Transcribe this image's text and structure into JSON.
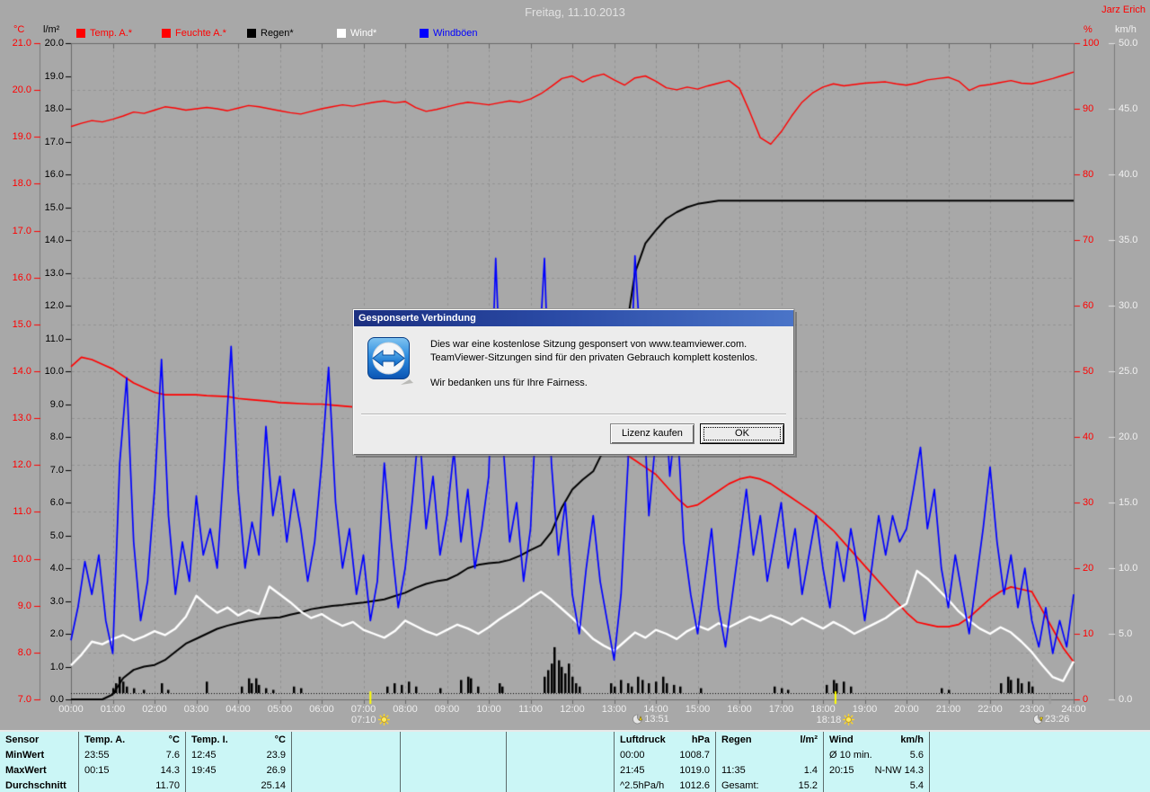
{
  "window": {
    "title_center": "Freitag, 11.10.2013",
    "station_name": "Jarz Erich"
  },
  "header": {
    "left_axis_units": [
      "°C",
      "l/m²"
    ],
    "right_axis_units": [
      "%",
      "km/h"
    ],
    "legend": [
      {
        "label": "Temp. A.*",
        "color": "#ff0000",
        "text_color": "#ff0000"
      },
      {
        "label": "Feuchte A.*",
        "color": "#ff0000",
        "text_color": "#ff0000"
      },
      {
        "label": "Regen*",
        "color": "#000000",
        "text_color": "#000000"
      },
      {
        "label": "Wind*",
        "color": "#ffffff",
        "text_color": "#ffffff"
      },
      {
        "label": "Windböen",
        "color": "#0000ff",
        "text_color": "#0000ff"
      }
    ]
  },
  "chart_data": {
    "type": "line",
    "title": "Freitag, 11.10.2013",
    "x_axis": {
      "start_hour": 0,
      "end_hour": 24,
      "tick_every_hours": 1,
      "label_format": "HH:00"
    },
    "grid": {
      "horizontal": "dashed at every °C tick",
      "vertical": "dashed at every hour"
    },
    "axes": [
      {
        "id": "temp_c",
        "side": "left",
        "pos": 0,
        "unit": "°C",
        "color": "#ff0000",
        "min": 7,
        "max": 21,
        "step": 1,
        "decimals": 1
      },
      {
        "id": "rain_lm2",
        "side": "left",
        "pos": 1,
        "unit": "l/m²",
        "color": "#000000",
        "min": 0,
        "max": 20,
        "step": 1,
        "decimals": 1
      },
      {
        "id": "hum_pct",
        "side": "right",
        "pos": 0,
        "unit": "%",
        "color": "#ff0000",
        "min": 0,
        "max": 100,
        "step": 10,
        "decimals": 0
      },
      {
        "id": "wind_kmh",
        "side": "right",
        "pos": 1,
        "unit": "km/h",
        "color": "#f0f0f0",
        "min": 0,
        "max": 50,
        "step": 5,
        "decimals": 1
      }
    ],
    "series": [
      {
        "name": "Temp. A.*",
        "axis": "temp_c",
        "color": "#ff0000",
        "start": 0,
        "step": 0.25,
        "values": [
          14.1,
          14.3,
          14.25,
          14.15,
          14.05,
          13.9,
          13.75,
          13.65,
          13.55,
          13.5,
          13.5,
          13.5,
          13.5,
          13.48,
          13.47,
          13.46,
          13.42,
          13.4,
          13.38,
          13.36,
          13.33,
          13.32,
          13.31,
          13.3,
          13.3,
          13.28,
          13.26,
          13.24,
          13.22,
          13.21,
          13.2,
          13.18,
          13.15,
          13.12,
          13.1,
          13.05,
          13.0,
          12.98,
          12.95,
          12.92,
          12.9,
          12.88,
          12.85,
          12.82,
          12.8,
          12.75,
          12.7,
          12.65,
          12.6,
          12.55,
          12.5,
          12.42,
          12.35,
          12.25,
          12.1,
          11.95,
          11.8,
          11.55,
          11.3,
          11.1,
          11.15,
          11.3,
          11.45,
          11.6,
          11.7,
          11.75,
          11.7,
          11.6,
          11.45,
          11.3,
          11.15,
          11.0,
          10.8,
          10.6,
          10.35,
          10.1,
          9.85,
          9.6,
          9.35,
          9.1,
          8.85,
          8.65,
          8.6,
          8.55,
          8.55,
          8.6,
          8.75,
          8.95,
          9.15,
          9.3,
          9.4,
          9.35,
          9.3,
          8.9,
          8.5,
          8.1,
          7.8
        ]
      },
      {
        "name": "Feuchte A.*",
        "axis": "hum_pct",
        "color": "#ff0000",
        "start": 0,
        "step": 0.25,
        "values": [
          87.3,
          87.8,
          88.2,
          88.0,
          88.4,
          88.9,
          89.5,
          89.3,
          89.8,
          90.3,
          90.1,
          89.8,
          90.0,
          90.2,
          90.0,
          89.7,
          90.1,
          90.5,
          90.3,
          90.0,
          89.7,
          89.4,
          89.2,
          89.6,
          90.0,
          90.3,
          90.6,
          90.4,
          90.7,
          91.0,
          91.2,
          90.9,
          91.1,
          90.2,
          89.6,
          89.9,
          90.3,
          90.7,
          91.0,
          90.8,
          90.6,
          90.9,
          91.2,
          91.0,
          91.5,
          92.3,
          93.4,
          94.6,
          95.0,
          94.1,
          94.9,
          95.3,
          94.4,
          93.6,
          94.7,
          95.0,
          94.2,
          93.2,
          92.9,
          93.3,
          93.0,
          93.5,
          93.9,
          94.3,
          93.1,
          89.5,
          85.6,
          84.6,
          86.5,
          88.9,
          91.0,
          92.4,
          93.3,
          93.8,
          93.5,
          93.7,
          93.9,
          94.0,
          94.1,
          93.8,
          93.6,
          93.9,
          94.4,
          94.6,
          94.8,
          94.2,
          92.8,
          93.5,
          93.7,
          94.0,
          94.3,
          93.9,
          93.8,
          94.2,
          94.6,
          95.1,
          95.6
        ]
      },
      {
        "name": "Regen (Summe)",
        "axis": "rain_lm2",
        "color": "#000000",
        "start": 0,
        "step": 0.25,
        "values": [
          0,
          0,
          0,
          0,
          0.15,
          0.65,
          0.9,
          1.0,
          1.05,
          1.2,
          1.45,
          1.7,
          1.85,
          2.0,
          2.15,
          2.25,
          2.33,
          2.4,
          2.45,
          2.48,
          2.5,
          2.58,
          2.65,
          2.75,
          2.8,
          2.85,
          2.88,
          2.92,
          2.95,
          3.0,
          3.05,
          3.15,
          3.25,
          3.4,
          3.52,
          3.6,
          3.65,
          3.8,
          4.0,
          4.1,
          4.15,
          4.18,
          4.25,
          4.38,
          4.55,
          4.7,
          5.1,
          5.85,
          6.4,
          6.7,
          6.95,
          7.6,
          9.0,
          10.9,
          13.0,
          13.9,
          14.3,
          14.65,
          14.85,
          15.0,
          15.1,
          15.15,
          15.2,
          15.2,
          15.2,
          15.2,
          15.2,
          15.2,
          15.2,
          15.2,
          15.2,
          15.2,
          15.2,
          15.2,
          15.2,
          15.2,
          15.2,
          15.2,
          15.2,
          15.2,
          15.2,
          15.2,
          15.2,
          15.2,
          15.2,
          15.2,
          15.2,
          15.2,
          15.2,
          15.2,
          15.2,
          15.2,
          15.2,
          15.2,
          15.2,
          15.2,
          15.2
        ]
      },
      {
        "name": "Wind*",
        "axis": "wind_kmh",
        "color": "#ffffff",
        "start": 0,
        "step": 0.25,
        "values": [
          2.6,
          3.4,
          4.4,
          4.2,
          4.6,
          4.9,
          4.5,
          4.8,
          5.2,
          4.9,
          5.4,
          6.3,
          7.9,
          7.2,
          6.6,
          7.0,
          6.4,
          6.8,
          6.5,
          8.6,
          8.0,
          7.4,
          6.7,
          6.2,
          6.5,
          6.0,
          5.6,
          5.9,
          5.3,
          5.0,
          4.7,
          5.2,
          6.0,
          5.6,
          5.2,
          4.9,
          5.3,
          5.7,
          5.4,
          5.0,
          5.5,
          6.1,
          6.6,
          7.1,
          7.7,
          8.2,
          7.6,
          6.9,
          6.2,
          5.4,
          4.6,
          4.1,
          3.7,
          4.4,
          5.1,
          4.7,
          5.3,
          5.0,
          4.6,
          5.2,
          5.6,
          5.3,
          5.8,
          5.5,
          5.9,
          6.3,
          6.0,
          6.4,
          6.1,
          5.7,
          6.2,
          5.8,
          5.4,
          5.9,
          5.5,
          5.0,
          5.4,
          5.8,
          6.2,
          6.8,
          7.3,
          9.8,
          9.2,
          8.4,
          7.6,
          6.7,
          6.0,
          5.4,
          5.0,
          5.5,
          5.1,
          4.4,
          3.6,
          2.6,
          1.7,
          1.4,
          2.9
        ]
      },
      {
        "name": "Windböen",
        "axis": "wind_kmh",
        "color": "#0000ff",
        "start": 0,
        "step": 0.166667,
        "values": [
          4.5,
          7,
          10.5,
          8,
          11,
          6,
          3.5,
          18,
          24.5,
          12,
          6,
          9,
          16,
          25.9,
          14,
          8,
          12,
          9,
          15.5,
          11,
          13,
          10,
          18,
          26.9,
          16,
          10,
          13.5,
          11,
          20.8,
          14,
          17,
          12,
          16,
          13,
          9,
          12,
          18,
          25.3,
          15,
          10,
          13,
          8,
          11,
          6,
          9,
          18,
          12,
          7,
          10,
          15,
          21,
          13,
          17,
          11,
          14,
          19,
          12,
          16,
          10,
          13,
          17,
          33.6,
          20,
          12,
          15,
          9,
          13,
          24,
          33.6,
          18,
          11,
          15,
          8,
          5,
          10,
          14,
          9,
          6,
          3,
          8,
          18,
          33.8,
          25,
          14,
          20,
          26,
          17,
          22,
          12,
          8,
          5,
          9,
          13,
          7,
          4,
          8,
          12,
          16,
          11,
          14,
          9,
          12,
          15,
          10,
          13,
          8,
          11,
          14,
          10,
          7,
          12,
          9,
          13,
          10,
          6,
          10,
          14,
          11,
          14,
          12,
          13,
          16,
          19.2,
          13,
          16,
          10,
          7,
          11,
          8,
          5,
          9,
          13,
          17.7,
          12,
          8,
          11,
          7,
          10,
          6,
          4,
          7,
          3.5,
          6,
          4,
          8
        ]
      }
    ],
    "rain_bars": {
      "name": "Regen*",
      "axis": "rain_lm2",
      "color": "#000000",
      "bars": [
        [
          1.0,
          0.15
        ],
        [
          1.08,
          0.3
        ],
        [
          1.17,
          0.5
        ],
        [
          1.25,
          0.35
        ],
        [
          1.33,
          0.2
        ],
        [
          1.5,
          0.15
        ],
        [
          1.75,
          0.1
        ],
        [
          2.17,
          0.3
        ],
        [
          2.33,
          0.1
        ],
        [
          3.25,
          0.35
        ],
        [
          4.08,
          0.2
        ],
        [
          4.25,
          0.45
        ],
        [
          4.33,
          0.3
        ],
        [
          4.42,
          0.45
        ],
        [
          4.5,
          0.25
        ],
        [
          4.67,
          0.15
        ],
        [
          4.83,
          0.1
        ],
        [
          5.33,
          0.2
        ],
        [
          5.5,
          0.15
        ],
        [
          7.58,
          0.2
        ],
        [
          7.75,
          0.3
        ],
        [
          7.92,
          0.25
        ],
        [
          8.08,
          0.35
        ],
        [
          8.25,
          0.2
        ],
        [
          8.83,
          0.15
        ],
        [
          9.33,
          0.4
        ],
        [
          9.5,
          0.5
        ],
        [
          9.58,
          0.45
        ],
        [
          9.75,
          0.2
        ],
        [
          10.25,
          0.3
        ],
        [
          10.33,
          0.2
        ],
        [
          11.33,
          0.5
        ],
        [
          11.42,
          0.7
        ],
        [
          11.5,
          0.9
        ],
        [
          11.58,
          1.4
        ],
        [
          11.67,
          1.0
        ],
        [
          11.75,
          0.8
        ],
        [
          11.83,
          0.6
        ],
        [
          11.92,
          0.9
        ],
        [
          12.0,
          0.5
        ],
        [
          12.08,
          0.3
        ],
        [
          12.17,
          0.2
        ],
        [
          12.92,
          0.3
        ],
        [
          13.0,
          0.2
        ],
        [
          13.17,
          0.4
        ],
        [
          13.33,
          0.3
        ],
        [
          13.42,
          0.2
        ],
        [
          13.58,
          0.5
        ],
        [
          13.67,
          0.4
        ],
        [
          13.83,
          0.3
        ],
        [
          14.0,
          0.35
        ],
        [
          14.17,
          0.5
        ],
        [
          14.25,
          0.3
        ],
        [
          14.42,
          0.25
        ],
        [
          14.58,
          0.2
        ],
        [
          15.08,
          0.15
        ],
        [
          16.83,
          0.2
        ],
        [
          17.0,
          0.15
        ],
        [
          17.17,
          0.1
        ],
        [
          18.08,
          0.25
        ],
        [
          18.25,
          0.4
        ],
        [
          18.33,
          0.3
        ],
        [
          18.5,
          0.35
        ],
        [
          18.67,
          0.2
        ],
        [
          20.83,
          0.15
        ],
        [
          21.0,
          0.1
        ],
        [
          22.25,
          0.3
        ],
        [
          22.42,
          0.5
        ],
        [
          22.5,
          0.4
        ],
        [
          22.67,
          0.45
        ],
        [
          22.75,
          0.3
        ],
        [
          22.92,
          0.35
        ],
        [
          23.0,
          0.2
        ]
      ]
    },
    "sun_moon_markers": [
      {
        "time": "07:10",
        "t": 7.167,
        "type": "sunrise"
      },
      {
        "time": "13:51",
        "t": 13.85,
        "type": "moonrise"
      },
      {
        "time": "18:18",
        "t": 18.3,
        "type": "sunset"
      },
      {
        "time": "23:26",
        "t": 23.433,
        "type": "moonset"
      }
    ]
  },
  "dialog": {
    "title": "Gesponserte Verbindung",
    "lines": [
      "Dies war eine kostenlose Sitzung gesponsert von www.teamviewer.com.",
      "TeamViewer-Sitzungen sind für den privaten Gebrauch komplett kostenlos.",
      "Wir bedanken uns für Ihre Fairness."
    ],
    "buttons": [
      {
        "label": "Lizenz kaufen"
      },
      {
        "label": "OK"
      }
    ]
  },
  "summary_table": {
    "row_labels": [
      "Sensor",
      "MinWert",
      "MaxWert",
      "Durchschnitt"
    ],
    "groups": [
      {
        "header": [
          "Temp. A.",
          "°C"
        ],
        "rows": [
          [
            "23:55",
            "7.6"
          ],
          [
            "00:15",
            "14.3"
          ],
          [
            "",
            "11.70"
          ]
        ]
      },
      {
        "header": [
          "Temp. I.",
          "°C"
        ],
        "rows": [
          [
            "12:45",
            "23.9"
          ],
          [
            "19:45",
            "26.9"
          ],
          [
            "",
            "25.14"
          ]
        ]
      },
      {
        "header": [
          "",
          ""
        ],
        "rows": [
          [
            "",
            ""
          ],
          [
            "",
            ""
          ],
          [
            "",
            ""
          ]
        ]
      },
      {
        "header": [
          "",
          ""
        ],
        "rows": [
          [
            "",
            ""
          ],
          [
            "",
            ""
          ],
          [
            "",
            ""
          ]
        ]
      },
      {
        "header": [
          "",
          ""
        ],
        "rows": [
          [
            "",
            ""
          ],
          [
            "",
            ""
          ],
          [
            "",
            ""
          ]
        ]
      },
      {
        "header": [
          "Luftdruck",
          "hPa"
        ],
        "rows": [
          [
            "00:00",
            "1008.7"
          ],
          [
            "21:45",
            "1019.0"
          ],
          [
            "^2.5hPa/h",
            "1012.6"
          ]
        ]
      },
      {
        "header": [
          "Regen",
          "l/m²"
        ],
        "rows": [
          [
            "",
            ""
          ],
          [
            "11:35",
            "1.4"
          ],
          [
            "Gesamt:",
            "15.2"
          ]
        ]
      },
      {
        "header": [
          "Wind",
          "km/h"
        ],
        "rows": [
          [
            "Ø 10 min.",
            "5.6"
          ],
          [
            "20:15",
            "N-NW 14.3"
          ],
          [
            "",
            "5.4"
          ]
        ]
      },
      {
        "header": [
          "",
          ""
        ],
        "rows": [
          [
            "",
            ""
          ],
          [
            "",
            ""
          ],
          [
            "",
            ""
          ]
        ]
      }
    ]
  }
}
